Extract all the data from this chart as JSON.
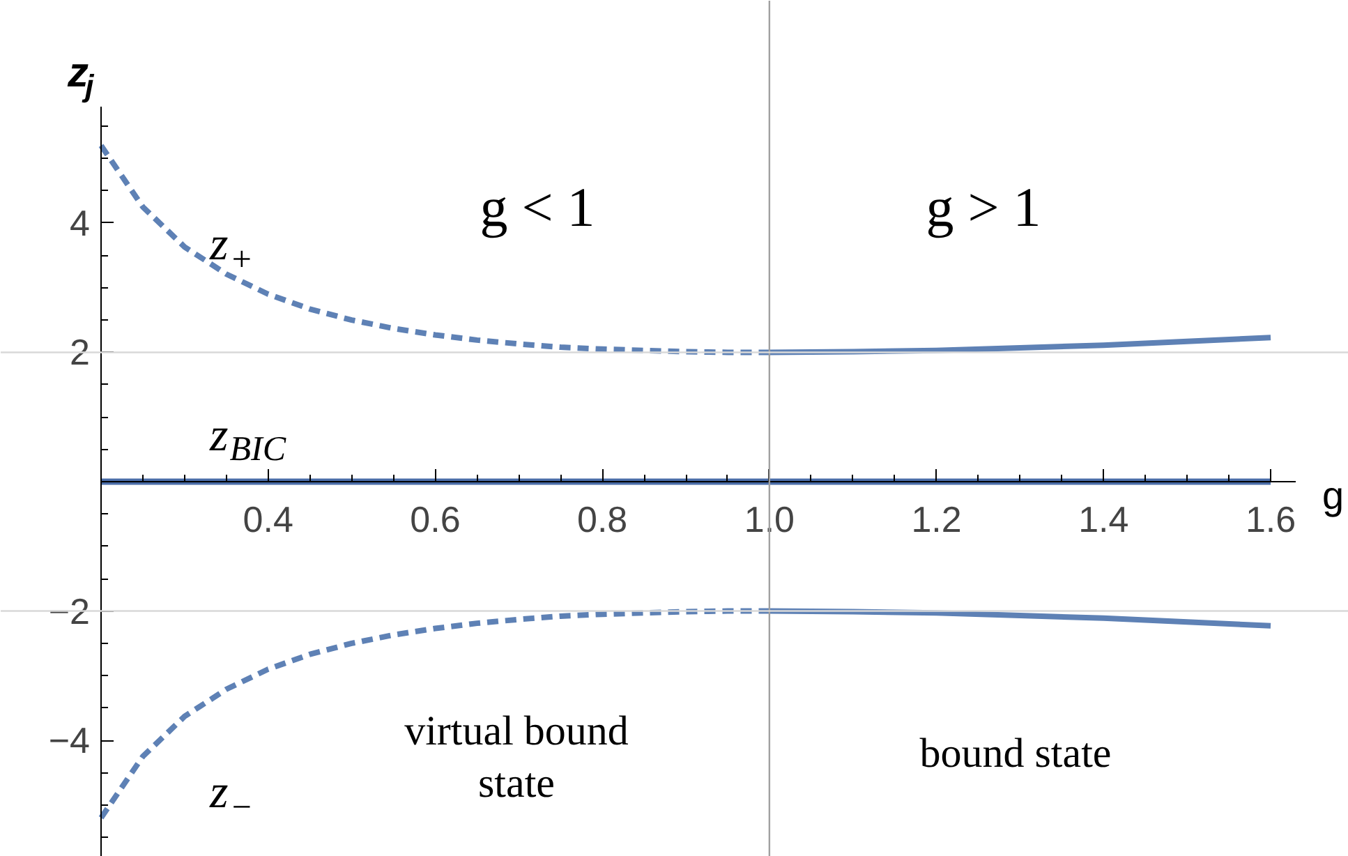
{
  "chart_data": {
    "type": "line",
    "xlabel": "g",
    "ylabel": "z$_{j}$",
    "xlim": [
      0.2,
      1.63
    ],
    "ylim": [
      -5.8,
      5.8
    ],
    "xticks": [
      0.4,
      0.6,
      0.8,
      {
        "value": 1,
        "label": "1.0"
      },
      1.2,
      1.4,
      1.6
    ],
    "yticks": [
      {
        "value": -4,
        "label": "−4"
      },
      {
        "value": -2,
        "label": "−2"
      },
      2,
      4
    ],
    "grid": false,
    "series": [
      {
        "name": "z$_{+}$",
        "color": "#5e81b5",
        "line_style": "dashed",
        "x": [
          0.2,
          0.25,
          0.3,
          0.35,
          0.4,
          0.45,
          0.5,
          0.55,
          0.6,
          0.65,
          0.7,
          0.75,
          0.8,
          0.85,
          0.9,
          0.95,
          1.0
        ],
        "values": [
          5.2,
          4.25,
          3.63,
          3.21,
          2.9,
          2.67,
          2.5,
          2.37,
          2.27,
          2.19,
          2.13,
          2.08,
          2.05,
          2.03,
          2.01,
          2.0,
          2.0
        ]
      },
      {
        "color": "#5e81b5",
        "line_style": "solid",
        "x": [
          1.0,
          1.1,
          1.2,
          1.3,
          1.4,
          1.5,
          1.6
        ],
        "values": [
          2.0,
          2.01,
          2.03,
          2.07,
          2.11,
          2.17,
          2.23
        ]
      },
      {
        "name": "z$_{BIC}$",
        "color": "#4a6da8",
        "line_style": "solid",
        "x": [
          0.2,
          1.6
        ],
        "values": [
          0,
          0
        ]
      },
      {
        "name": "z$_{−}$",
        "color": "#5e81b5",
        "line_style": "dashed",
        "x": [
          0.2,
          0.25,
          0.3,
          0.35,
          0.4,
          0.45,
          0.5,
          0.55,
          0.6,
          0.65,
          0.7,
          0.75,
          0.8,
          0.85,
          0.9,
          0.95,
          1.0
        ],
        "values": [
          -5.2,
          -4.25,
          -3.63,
          -3.21,
          -2.9,
          -2.67,
          -2.5,
          -2.37,
          -2.27,
          -2.19,
          -2.13,
          -2.08,
          -2.05,
          -2.03,
          -2.01,
          -2.0,
          -2.0
        ]
      },
      {
        "color": "#5e81b5",
        "line_style": "solid",
        "x": [
          1.0,
          1.1,
          1.2,
          1.3,
          1.4,
          1.5,
          1.6
        ],
        "values": [
          -2.0,
          -2.01,
          -2.03,
          -2.07,
          -2.11,
          -2.17,
          -2.23
        ]
      }
    ],
    "ref_lines": [
      {
        "axis": "x",
        "value": 1.0,
        "color": "#a0a0a0"
      },
      {
        "axis": "y",
        "value": 2,
        "color": "#d9d9d9"
      },
      {
        "axis": "y",
        "value": -2,
        "color": "#d9d9d9"
      }
    ],
    "annotations": [
      "g < 1",
      "g > 1",
      "virtual bound\nstate",
      "bound state"
    ]
  }
}
